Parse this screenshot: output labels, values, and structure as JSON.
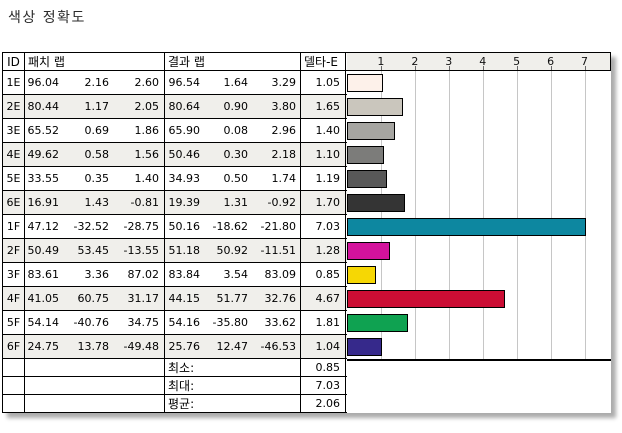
{
  "title": "색상 정확도",
  "table": {
    "headers": {
      "id": "ID",
      "patch_lab": "패치 랩",
      "result_lab": "결과 랩",
      "delta_e": "델타-E"
    },
    "rows": [
      {
        "id": "1E",
        "patch": [
          "96.04",
          "2.16",
          "2.60"
        ],
        "result": [
          "96.54",
          "1.64",
          "3.29"
        ],
        "delta_e": "1.05"
      },
      {
        "id": "2E",
        "patch": [
          "80.44",
          "1.17",
          "2.05"
        ],
        "result": [
          "80.64",
          "0.90",
          "3.80"
        ],
        "delta_e": "1.65"
      },
      {
        "id": "3E",
        "patch": [
          "65.52",
          "0.69",
          "1.86"
        ],
        "result": [
          "65.90",
          "0.08",
          "2.96"
        ],
        "delta_e": "1.40"
      },
      {
        "id": "4E",
        "patch": [
          "49.62",
          "0.58",
          "1.56"
        ],
        "result": [
          "50.46",
          "0.30",
          "2.18"
        ],
        "delta_e": "1.10"
      },
      {
        "id": "5E",
        "patch": [
          "33.55",
          "0.35",
          "1.40"
        ],
        "result": [
          "34.93",
          "0.50",
          "1.74"
        ],
        "delta_e": "1.19"
      },
      {
        "id": "6E",
        "patch": [
          "16.91",
          "1.43",
          "-0.81"
        ],
        "result": [
          "19.39",
          "1.31",
          "-0.92"
        ],
        "delta_e": "1.70"
      },
      {
        "id": "1F",
        "patch": [
          "47.12",
          "-32.52",
          "-28.75"
        ],
        "result": [
          "50.16",
          "-18.62",
          "-21.80"
        ],
        "delta_e": "7.03"
      },
      {
        "id": "2F",
        "patch": [
          "50.49",
          "53.45",
          "-13.55"
        ],
        "result": [
          "51.18",
          "50.92",
          "-11.51"
        ],
        "delta_e": "1.28"
      },
      {
        "id": "3F",
        "patch": [
          "83.61",
          "3.36",
          "87.02"
        ],
        "result": [
          "83.84",
          "3.54",
          "83.09"
        ],
        "delta_e": "0.85"
      },
      {
        "id": "4F",
        "patch": [
          "41.05",
          "60.75",
          "31.17"
        ],
        "result": [
          "44.15",
          "51.77",
          "32.76"
        ],
        "delta_e": "4.67"
      },
      {
        "id": "5F",
        "patch": [
          "54.14",
          "-40.76",
          "34.75"
        ],
        "result": [
          "54.16",
          "-35.80",
          "33.62"
        ],
        "delta_e": "1.81"
      },
      {
        "id": "6F",
        "patch": [
          "24.75",
          "13.78",
          "-49.48"
        ],
        "result": [
          "25.76",
          "12.47",
          "-46.53"
        ],
        "delta_e": "1.04"
      }
    ],
    "summary": [
      {
        "label": "최소:",
        "value": "0.85"
      },
      {
        "label": "최대:",
        "value": "7.03"
      },
      {
        "label": "평균:",
        "value": "2.06"
      }
    ]
  },
  "chart_data": {
    "type": "bar",
    "orientation": "horizontal",
    "title": "델타-E",
    "categories": [
      "1E",
      "2E",
      "3E",
      "4E",
      "5E",
      "6E",
      "1F",
      "2F",
      "3F",
      "4F",
      "5F",
      "6F"
    ],
    "values": [
      1.05,
      1.65,
      1.4,
      1.1,
      1.19,
      1.7,
      7.03,
      1.28,
      0.85,
      4.67,
      1.81,
      1.04
    ],
    "bar_colors": [
      "#fdf1ea",
      "#cac6bd",
      "#a6a5a1",
      "#7c7c7a",
      "#585858",
      "#343434",
      "#0d87a0",
      "#d3129c",
      "#f6d704",
      "#cb0d34",
      "#0fa251",
      "#36298b"
    ],
    "axis_ticks": [
      1,
      2,
      3,
      4,
      5,
      6,
      7
    ],
    "xlim": [
      0,
      7.78
    ],
    "grid": true,
    "legend": false,
    "stats": {
      "min": 0.85,
      "max": 7.03,
      "mean": 2.06
    }
  },
  "colors": {
    "alt_row": "#f0efeb",
    "axis_band": "#f0efeb",
    "gridline": "#c6c6c6",
    "border": "#000000"
  }
}
